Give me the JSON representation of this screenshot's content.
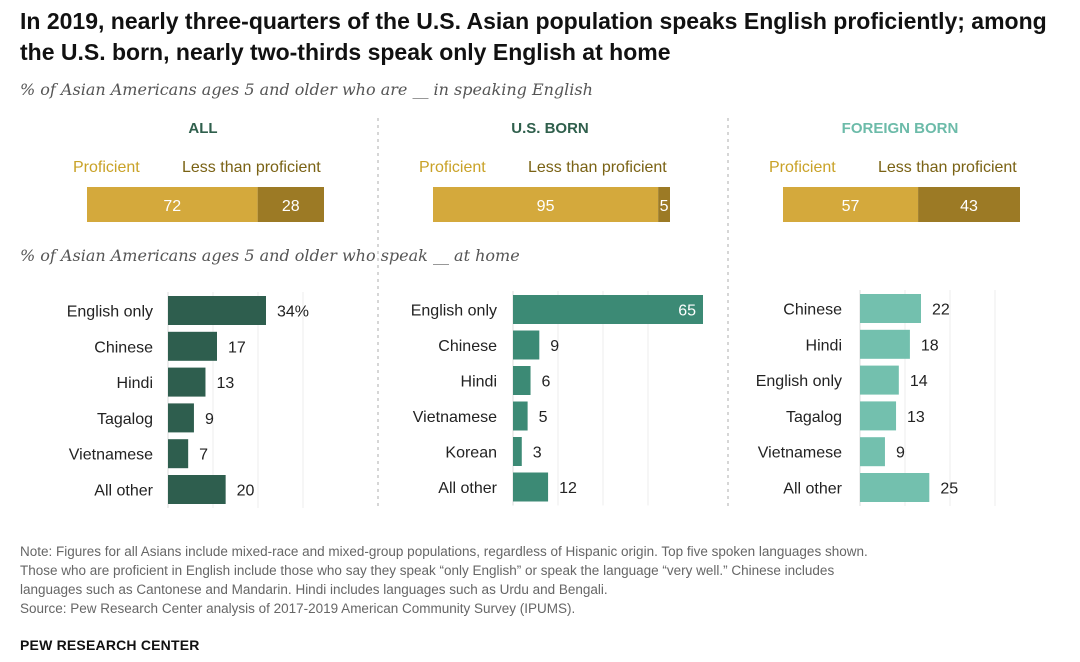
{
  "title": "In 2019, nearly three-quarters of the U.S. Asian population speaks English proficiently; among the U.S. born, nearly two-thirds speak only English at home",
  "subtitle_proficiency": "% of Asian Americans ages 5 and older who are __ in speaking English",
  "subtitle_home": "% of Asian Americans ages 5 and older who speak __ at home",
  "colors": {
    "proficient": "#D4A93C",
    "less_proficient": "#9C7A25",
    "all_label": "#2F5F4C",
    "usborn_label": "#2F5F4C",
    "foreign_label": "#6CBBA9",
    "all_bar": "#2E5E4E",
    "usborn_bar": "#3C8A75",
    "foreign_bar": "#73C0AE",
    "gold_label": "#C9A227",
    "dark_label": "#7A6214"
  },
  "chart_data": [
    {
      "type": "bar",
      "stacked": true,
      "title": "% of Asian Americans ages 5 and older who are __ in speaking English",
      "categories": [
        "ALL",
        "U.S. BORN",
        "FOREIGN BORN"
      ],
      "series": [
        {
          "name": "Proficient",
          "values": [
            72,
            95,
            57
          ]
        },
        {
          "name": "Less than proficient",
          "values": [
            28,
            5,
            43
          ]
        }
      ],
      "xlim": [
        0,
        100
      ]
    },
    {
      "type": "bar",
      "orientation": "horizontal",
      "title": "% of Asian Americans ages 5 and older who speak __ at home",
      "panel": "ALL",
      "categories": [
        "English only",
        "Chinese",
        "Hindi",
        "Tagalog",
        "Vietnamese",
        "All other"
      ],
      "values": [
        34,
        17,
        13,
        9,
        7,
        20
      ],
      "value_labels": [
        "34%",
        "17",
        "13",
        "9",
        "7",
        "20"
      ],
      "xlim": [
        0,
        100
      ]
    },
    {
      "type": "bar",
      "orientation": "horizontal",
      "title": "% of Asian Americans ages 5 and older who speak __ at home",
      "panel": "U.S. BORN",
      "categories": [
        "English only",
        "Chinese",
        "Hindi",
        "Vietnamese",
        "Korean",
        "All other"
      ],
      "values": [
        65,
        9,
        6,
        5,
        3,
        12
      ],
      "value_labels": [
        "65",
        "9",
        "6",
        "5",
        "3",
        "12"
      ],
      "xlim": [
        0,
        100
      ]
    },
    {
      "type": "bar",
      "orientation": "horizontal",
      "title": "% of Asian Americans ages 5 and older who speak __ at home",
      "panel": "FOREIGN BORN",
      "categories": [
        "Chinese",
        "Hindi",
        "English only",
        "Tagalog",
        "Vietnamese",
        "All other"
      ],
      "values": [
        22,
        18,
        14,
        13,
        9,
        25
      ],
      "value_labels": [
        "22",
        "18",
        "14",
        "13",
        "9",
        "25"
      ],
      "xlim": [
        0,
        100
      ]
    }
  ],
  "legend": {
    "proficient": "Proficient",
    "less": "Less than proficient"
  },
  "notes": [
    "Note: Figures for all Asians include mixed-race and mixed-group populations, regardless of Hispanic origin. Top five spoken languages shown.",
    "Those who are proficient in English include those who say they speak “only English” or speak the language “very well.” Chinese includes",
    "languages such as Cantonese and Mandarin. Hindi includes languages such as Urdu and Bengali.",
    "Source: Pew Research Center analysis of 2017-2019 American Community Survey (IPUMS)."
  ],
  "brand": "PEW RESEARCH CENTER"
}
